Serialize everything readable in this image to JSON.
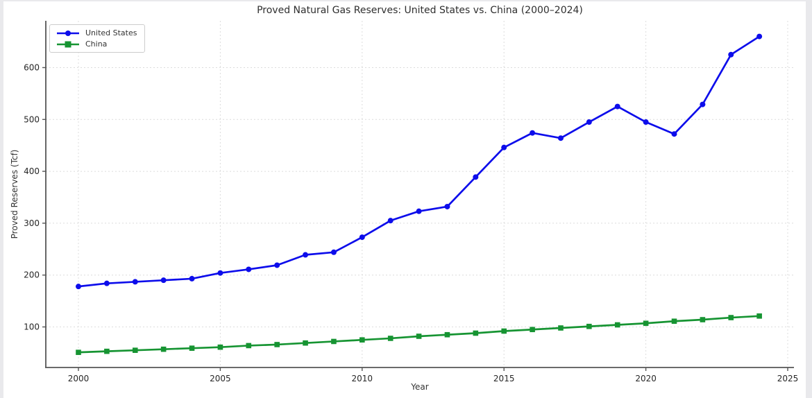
{
  "page": {
    "background_color": "#ffffff",
    "edge_strip_color": "#e9e9ec"
  },
  "chart_data": {
    "type": "line",
    "title": "Proved Natural Gas Reserves: United States vs. China (2000–2024)",
    "xlabel": "Year",
    "ylabel": "Proved Reserves (Tcf)",
    "x": [
      2000,
      2001,
      2002,
      2003,
      2004,
      2005,
      2006,
      2007,
      2008,
      2009,
      2010,
      2011,
      2012,
      2013,
      2014,
      2015,
      2016,
      2017,
      2018,
      2019,
      2020,
      2021,
      2022,
      2023,
      2024
    ],
    "series": [
      {
        "name": "United States",
        "color": "#0d0deb",
        "marker": "circle",
        "values": [
          178,
          184,
          187,
          190,
          193,
          204,
          211,
          219,
          239,
          244,
          273,
          305,
          323,
          332,
          389,
          446,
          474,
          464,
          495,
          525,
          495,
          472,
          529,
          625,
          660
        ]
      },
      {
        "name": "China",
        "color": "#169432",
        "marker": "square",
        "values": [
          51,
          53,
          55,
          57,
          59,
          61,
          64,
          66,
          69,
          72,
          75,
          78,
          82,
          85,
          88,
          92,
          95,
          98,
          101,
          104,
          107,
          111,
          114,
          118,
          121
        ]
      }
    ],
    "xlim": [
      1998.85,
      2025.22
    ],
    "ylim": [
      21.8,
      690.2
    ],
    "xticks": [
      2000,
      2005,
      2010,
      2015,
      2020,
      2025
    ],
    "yticks": [
      100,
      200,
      300,
      400,
      500,
      600
    ],
    "grid": true,
    "grid_color": "#dcdcdc",
    "spine_color": "#555555",
    "tick_label_color": "#262626",
    "legend_position": "upper left"
  }
}
